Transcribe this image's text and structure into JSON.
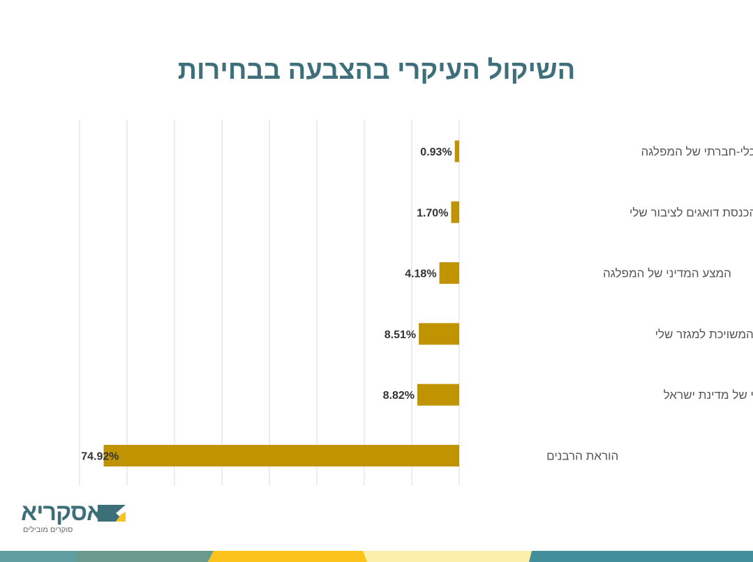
{
  "chart_data": {
    "type": "bar",
    "orientation": "horizontal",
    "title": "השיקול העיקרי בהצבעה בבחירות",
    "categories": [
      "המצע הכלכלי-חברתי של המפלגה",
      "חברי הכנסת דואגים לציבור שלי",
      "המצע המדיני של המפלגה",
      "הצבעה למפלגה המשויכת למגזר שלי",
      "דאגה לצביונה היהודי של מדינת ישראל",
      "הוראת הרבנים"
    ],
    "values": [
      0.93,
      1.7,
      4.18,
      8.51,
      8.82,
      74.92
    ],
    "data_labels": [
      "0.93%",
      "1.70%",
      "4.18%",
      "8.51%",
      "8.82%",
      "74.92%"
    ],
    "xlim": [
      0,
      80
    ],
    "x_direction": "right-to-left",
    "grid": true,
    "bar_color": "#bf9400",
    "grid_color": "#d9d9d9"
  },
  "logo": {
    "name": "אסקריא",
    "tagline": "סוקרים מובילים",
    "colors": [
      "#3d6f78",
      "#f9c31f"
    ]
  },
  "footer_stripe_colors": [
    "#5f9fa1",
    "#6a9a8c",
    "#fbc31c",
    "#fbeeaa",
    "#428e9a"
  ]
}
